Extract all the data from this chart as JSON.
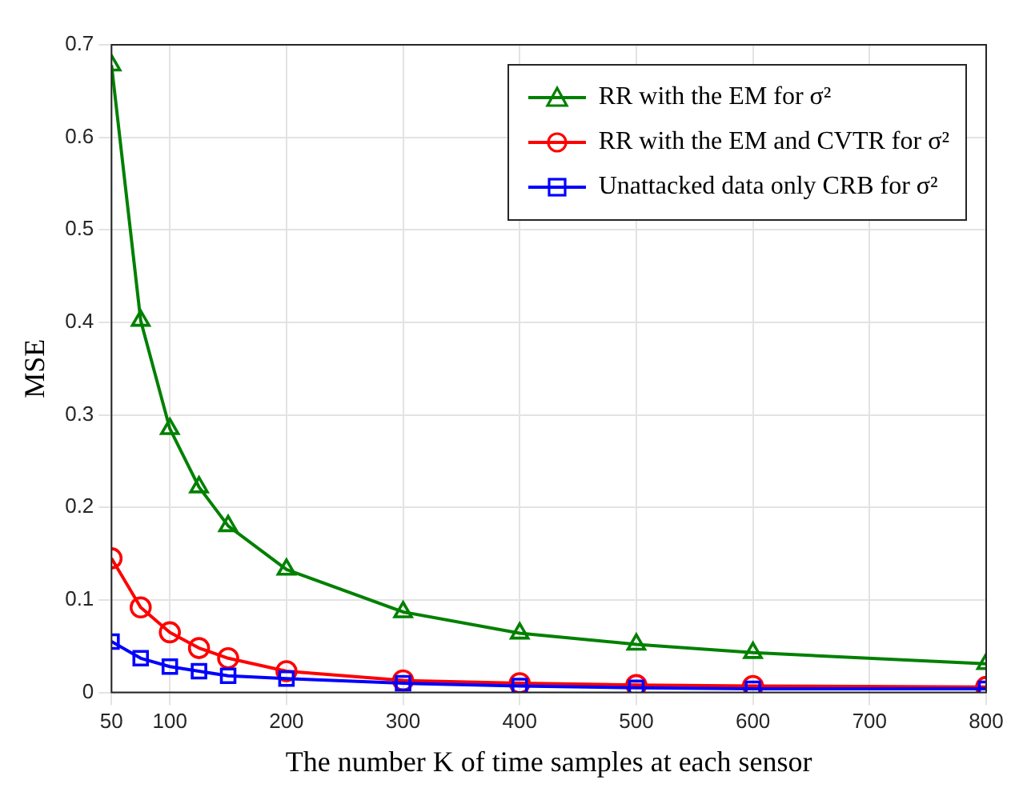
{
  "chart_data": {
    "type": "line",
    "xlabel": "The number K of time samples at each sensor",
    "ylabel": "MSE",
    "x": [
      50,
      75,
      100,
      125,
      150,
      200,
      300,
      400,
      500,
      600,
      800
    ],
    "series": [
      {
        "name": "RR with the EM for σ²",
        "color": "#008000",
        "marker": "triangle",
        "values": [
          0.678,
          0.402,
          0.285,
          0.222,
          0.18,
          0.133,
          0.087,
          0.064,
          0.052,
          0.043,
          0.031
        ]
      },
      {
        "name": "RR with the EM and CVTR for σ²",
        "color": "#ff0000",
        "marker": "circle",
        "values": [
          0.145,
          0.092,
          0.065,
          0.048,
          0.037,
          0.023,
          0.013,
          0.01,
          0.008,
          0.007,
          0.006
        ]
      },
      {
        "name": "Unattacked data only CRB for σ²",
        "color": "#0000ff",
        "marker": "square",
        "values": [
          0.055,
          0.037,
          0.028,
          0.023,
          0.018,
          0.015,
          0.01,
          0.007,
          0.005,
          0.004,
          0.004
        ]
      }
    ],
    "xlim": [
      50,
      800
    ],
    "xticks": [
      50,
      100,
      200,
      300,
      400,
      500,
      600,
      700,
      800
    ],
    "ylim": [
      0,
      0.7
    ],
    "yticks": [
      0,
      0.1,
      0.2,
      0.3,
      0.4,
      0.5,
      0.6,
      0.7
    ],
    "grid": true,
    "legend": "top right",
    "line_style": "solid"
  }
}
